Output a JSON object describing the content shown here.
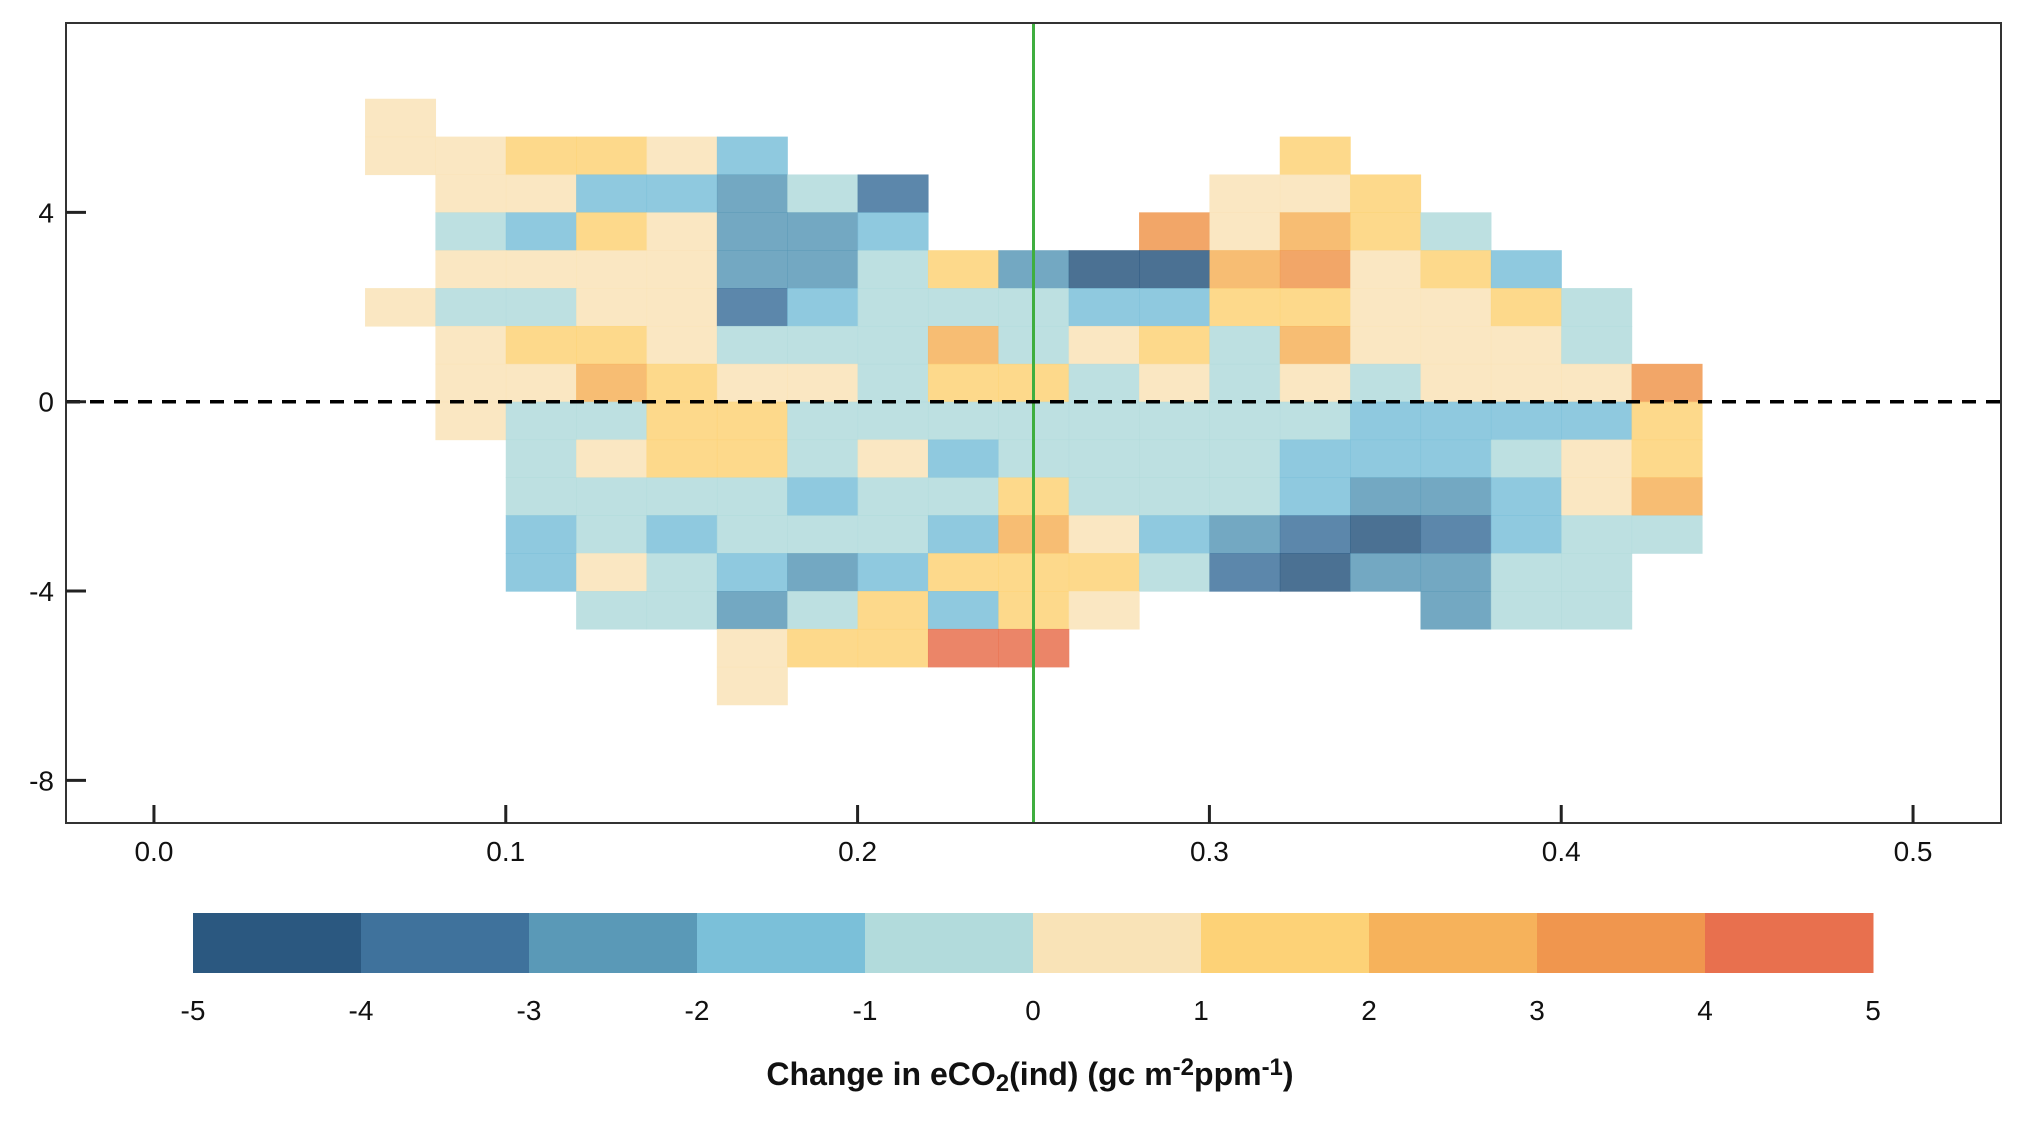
{
  "chart_data": {
    "type": "heatmap",
    "title": "",
    "xlabel": "",
    "ylabel": "",
    "xlim": [
      -0.025,
      0.525
    ],
    "ylim": [
      -8.9,
      8.0
    ],
    "x_ticks": [
      0.0,
      0.1,
      0.2,
      0.3,
      0.4,
      0.5
    ],
    "x_tick_labels": [
      "0.0",
      "0.1",
      "0.2",
      "0.3",
      "0.4",
      "0.5"
    ],
    "y_ticks": [
      4,
      0,
      -4,
      -8
    ],
    "y_tick_labels": [
      "4",
      "0",
      "-4",
      "-8"
    ],
    "cell_width": 0.02,
    "cell_height": 0.8,
    "grid": false,
    "vertical_reference_line": {
      "x": 0.25,
      "color": "#3fae3f",
      "style": "solid"
    },
    "horizontal_reference_line": {
      "y": 0,
      "color": "#000000",
      "style": "dashed"
    },
    "colorbar": {
      "title_parts": [
        {
          "text": "Change in eCO",
          "shift": "none"
        },
        {
          "text": "2",
          "shift": "sub"
        },
        {
          "text": "(ind) (gc m",
          "shift": "none"
        },
        {
          "text": "-2",
          "shift": "super"
        },
        {
          "text": "ppm",
          "shift": "none"
        },
        {
          "text": "-1",
          "shift": "super"
        },
        {
          "text": ")",
          "shift": "none"
        }
      ],
      "bounds": [
        -5,
        -4,
        -3,
        -2,
        -1,
        0,
        1,
        2,
        3,
        4,
        5
      ],
      "tick_labels": [
        "-5",
        "-4",
        "-3",
        "-2",
        "-1",
        "0",
        "1",
        "2",
        "3",
        "4",
        "5"
      ],
      "colors": [
        "#2b5880",
        "#3f729c",
        "#5a99b7",
        "#7bc0d9",
        "#b2dbdc",
        "#f9e3b7",
        "#fdd277",
        "#f6b25b",
        "#f0964e",
        "#e8704e"
      ]
    },
    "x_centers": [
      0.07,
      0.09,
      0.11,
      0.13,
      0.15,
      0.17,
      0.19,
      0.21,
      0.23,
      0.25,
      0.27,
      0.29,
      0.31,
      0.33,
      0.35,
      0.37,
      0.39,
      0.41,
      0.43
    ],
    "rows": [
      {
        "y": 6.0,
        "values": [
          0.3,
          null,
          null,
          null,
          null,
          null,
          null,
          null,
          null,
          null,
          null,
          null,
          null,
          null,
          null,
          null,
          null,
          null,
          null
        ]
      },
      {
        "y": 5.2,
        "values": [
          0.1,
          0.8,
          1.1,
          1.8,
          0.6,
          -1.8,
          null,
          null,
          null,
          null,
          null,
          null,
          null,
          1.6,
          null,
          null,
          null,
          null,
          null
        ]
      },
      {
        "y": 4.4,
        "values": [
          null,
          0.2,
          0.6,
          -1.3,
          -1.4,
          -3.0,
          -0.6,
          -4.0,
          null,
          null,
          null,
          null,
          0.9,
          0.2,
          1.2,
          null,
          null,
          null,
          null
        ]
      },
      {
        "y": 3.6,
        "values": [
          null,
          -0.4,
          -1.5,
          1.3,
          0.7,
          -2.2,
          -2.7,
          -1.2,
          null,
          null,
          null,
          3.4,
          0.3,
          2.6,
          1.3,
          -0.6,
          null,
          null,
          null
        ]
      },
      {
        "y": 2.8,
        "values": [
          null,
          0.2,
          0.8,
          0.2,
          0.2,
          -2.4,
          -2.9,
          -1.0,
          1.2,
          -2.5,
          -5.0,
          -4.2,
          2.6,
          3.1,
          0.7,
          1.3,
          -1.3,
          null,
          null
        ]
      },
      {
        "y": 2.0,
        "values": [
          0.0,
          -0.1,
          -0.1,
          0.4,
          0.9,
          -3.5,
          -1.8,
          -0.7,
          -0.1,
          -0.6,
          -1.7,
          -1.4,
          1.4,
          1.0,
          0.5,
          0.6,
          1.5,
          -0.6,
          null
        ]
      },
      {
        "y": 1.2,
        "values": [
          null,
          0.2,
          1.4,
          1.1,
          0.6,
          -0.2,
          -0.7,
          -0.3,
          2.1,
          -0.3,
          0.8,
          1.2,
          -0.9,
          2.5,
          0.4,
          0.7,
          0.7,
          -0.1,
          null
        ]
      },
      {
        "y": 0.4,
        "values": [
          null,
          0.4,
          0.5,
          2.1,
          1.5,
          0.5,
          0.8,
          -0.1,
          1.3,
          1.1,
          -0.1,
          0.0,
          -0.6,
          0.0,
          -0.1,
          0.2,
          0.0,
          0.0,
          3.2
        ]
      },
      {
        "y": -0.4,
        "values": [
          null,
          0.6,
          -0.1,
          -0.6,
          1.4,
          1.5,
          -0.3,
          -0.3,
          -0.3,
          -1.0,
          -0.1,
          -0.2,
          -0.3,
          -0.2,
          -1.1,
          -1.3,
          -1.2,
          -1.3,
          1.1
        ]
      },
      {
        "y": -1.2,
        "values": [
          null,
          null,
          -0.2,
          0.8,
          1.1,
          1.3,
          -0.4,
          0.5,
          -1.4,
          -0.9,
          -0.5,
          -0.5,
          -1.0,
          -1.4,
          -1.8,
          -1.6,
          -0.9,
          0.1,
          1.4
        ]
      },
      {
        "y": -2.0,
        "values": [
          null,
          null,
          -0.3,
          -0.1,
          -0.2,
          -0.6,
          -1.3,
          -1.0,
          -0.9,
          1.2,
          -0.5,
          -0.3,
          -0.4,
          -1.9,
          -2.8,
          -2.6,
          -1.5,
          0.9,
          2.1
        ]
      },
      {
        "y": -2.8,
        "values": [
          null,
          null,
          -1.6,
          -0.2,
          -1.3,
          -0.7,
          -1.0,
          -1.0,
          -1.3,
          2.4,
          0.4,
          -1.4,
          -2.8,
          -3.9,
          -4.1,
          -3.2,
          -1.2,
          -0.8,
          -0.5
        ]
      },
      {
        "y": -3.6,
        "values": [
          null,
          null,
          -1.9,
          0.7,
          -0.6,
          -1.9,
          -2.5,
          -1.5,
          1.6,
          1.5,
          1.6,
          -0.3,
          -3.5,
          -4.3,
          -2.6,
          -2.3,
          -0.6,
          -1.0,
          null
        ]
      },
      {
        "y": -4.4,
        "values": [
          null,
          null,
          null,
          -0.2,
          -0.8,
          -2.3,
          -0.8,
          1.3,
          -1.2,
          1.0,
          0.9,
          null,
          null,
          null,
          null,
          -2.6,
          -0.6,
          -1.0,
          null
        ]
      },
      {
        "y": -5.2,
        "values": [
          null,
          null,
          null,
          null,
          null,
          0.6,
          1.3,
          1.5,
          4.4,
          4.6,
          null,
          null,
          null,
          null,
          null,
          null,
          null,
          null,
          null
        ]
      },
      {
        "y": -6.0,
        "values": [
          null,
          null,
          null,
          null,
          null,
          0.6,
          null,
          null,
          null,
          null,
          null,
          null,
          null,
          null,
          null,
          null,
          null,
          null,
          null
        ]
      }
    ]
  }
}
